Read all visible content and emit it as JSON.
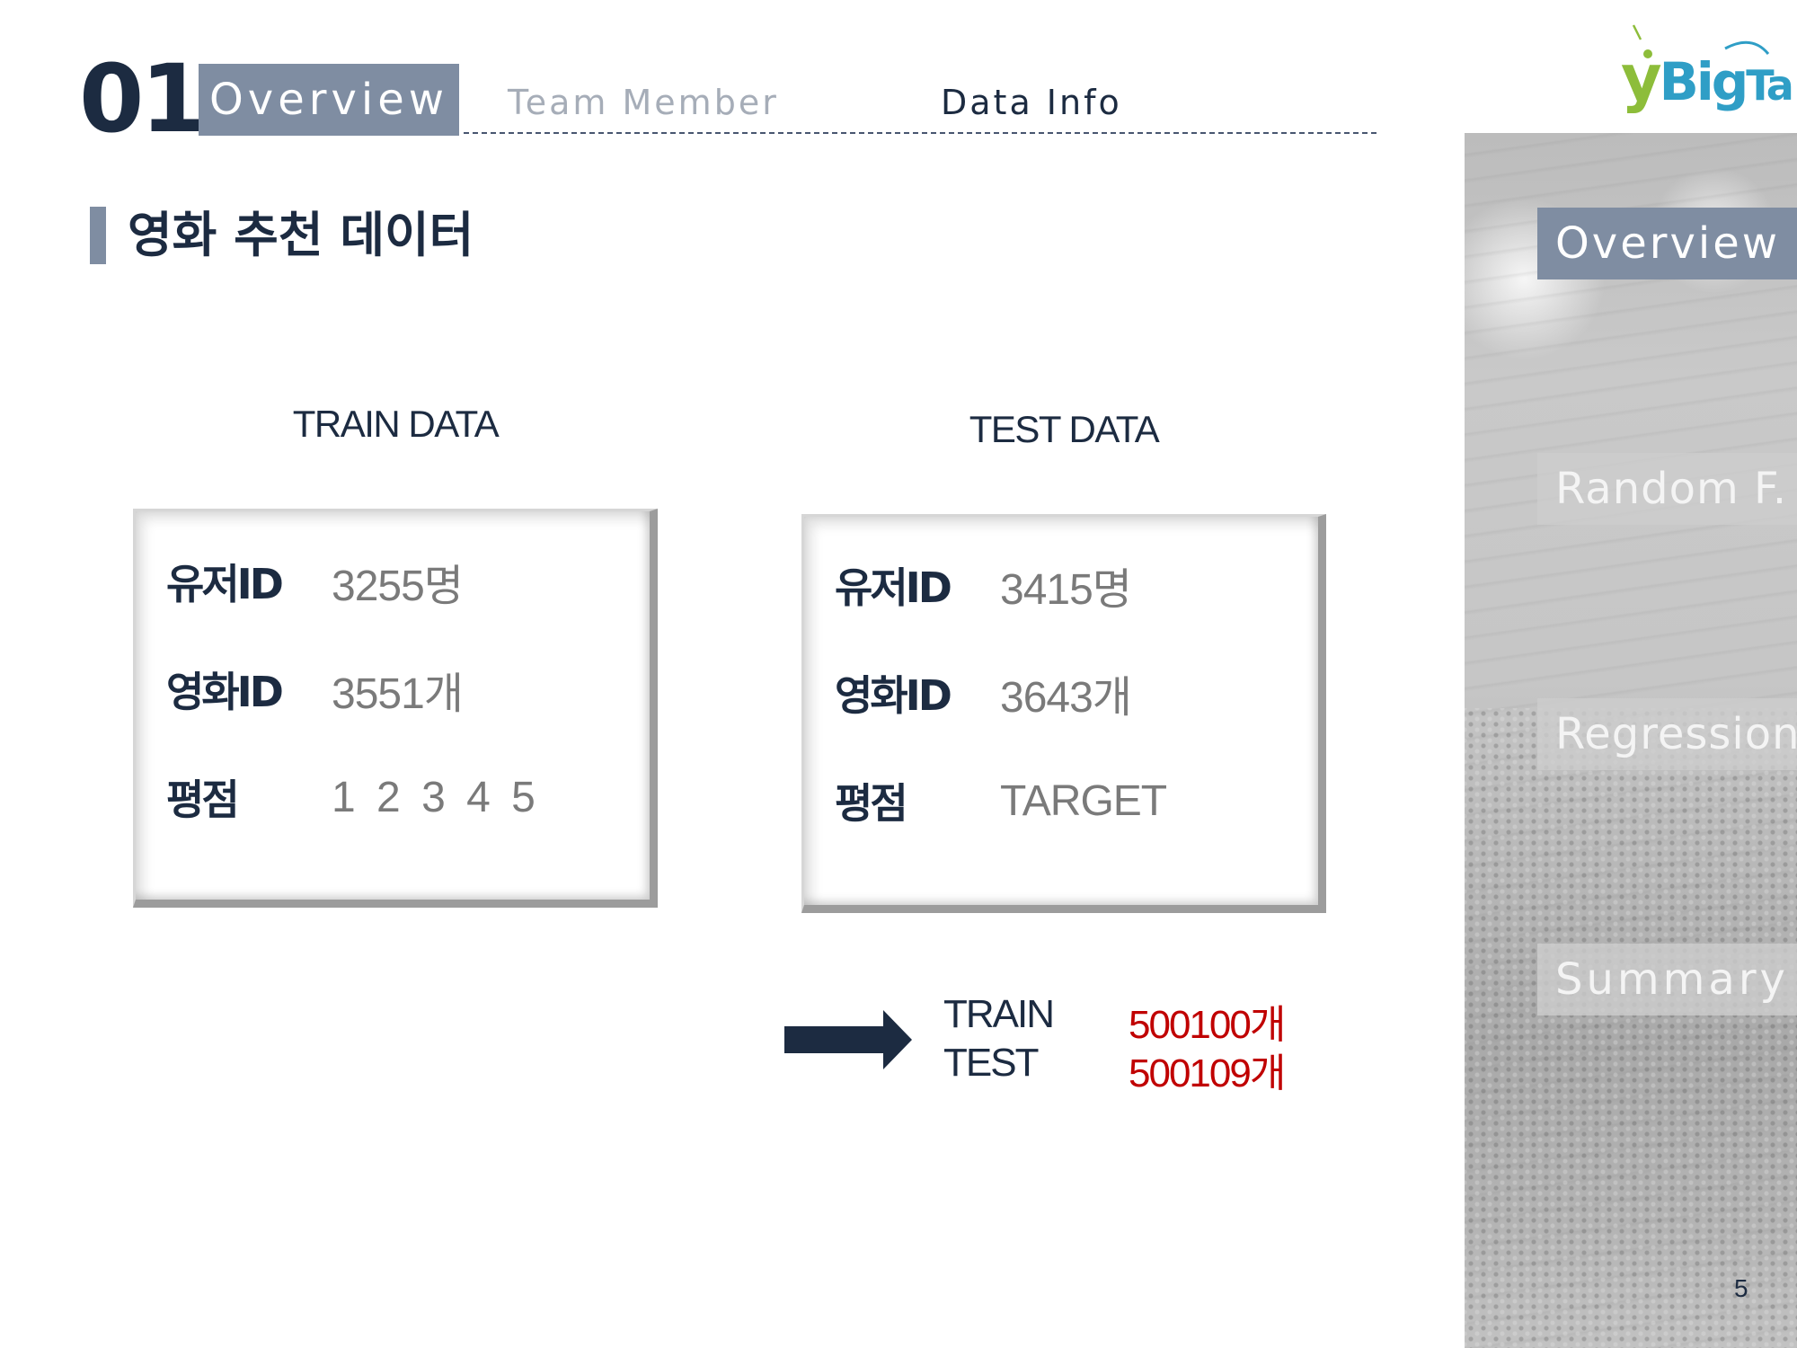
{
  "header": {
    "section_number": "01",
    "tabs": [
      {
        "label": "Overview",
        "active": true
      },
      {
        "label": "Team  Member",
        "active": false
      },
      {
        "label": "Data  Info",
        "active": false
      }
    ]
  },
  "page_title": "영화 추천 데이터",
  "train": {
    "heading": "TRAIN DATA",
    "rows": [
      {
        "label": "유저ID",
        "value": "3255명"
      },
      {
        "label": "영화ID",
        "value": "3551개"
      },
      {
        "label": "평점",
        "value": "1 2 3 4 5"
      }
    ]
  },
  "test": {
    "heading": "TEST DATA",
    "rows": [
      {
        "label": "유저ID",
        "value": "3415명"
      },
      {
        "label": "영화ID",
        "value": "3643개"
      },
      {
        "label": "평점",
        "value": "TARGET"
      }
    ]
  },
  "totals": [
    {
      "label": "TRAIN",
      "value": "500100개"
    },
    {
      "label": "TEST",
      "value": "500109개"
    }
  ],
  "sidebar": {
    "items": [
      {
        "label": "Overview",
        "active": true
      },
      {
        "label": "Random  F.",
        "active": false
      },
      {
        "label": "Regression",
        "active": false
      },
      {
        "label": "Summary",
        "active": false
      }
    ]
  },
  "page_number": "5",
  "colors": {
    "navy": "#1c2b41",
    "slate": "#7f8da2",
    "accent_red": "#c00000",
    "value_gray": "#7a7a7a"
  },
  "icons": {
    "logo": "ybigta-logo",
    "arrow": "right-arrow-icon"
  }
}
